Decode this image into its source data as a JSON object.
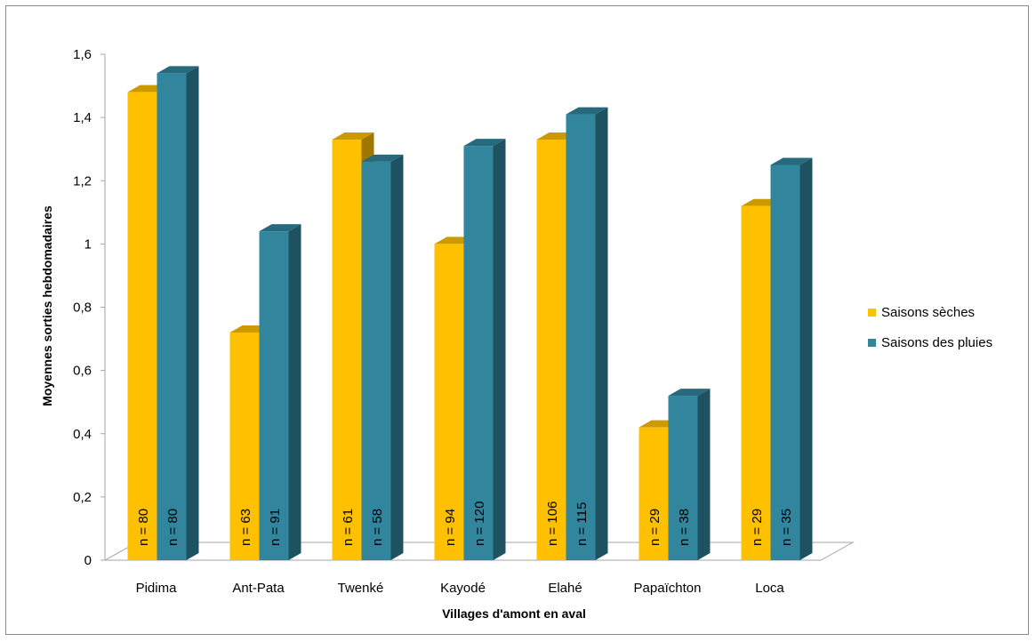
{
  "chart_data": {
    "type": "bar",
    "title": "",
    "xlabel": "Villages d'amont en aval",
    "ylabel": "Moyennes sorties hebdomadaires",
    "ylim": [
      0,
      1.6
    ],
    "yticks": [
      "0",
      "0,2",
      "0,4",
      "0,6",
      "0,8",
      "1",
      "1,2",
      "1,4",
      "1,6"
    ],
    "categories": [
      "Pidima",
      "Ant-Pata",
      "Twenké",
      "Kayodé",
      "Elahé",
      "Papaïchton",
      "Loca"
    ],
    "series": [
      {
        "name": "Saisons sèches",
        "color": "#FFC000",
        "values": [
          1.48,
          0.72,
          1.33,
          1.0,
          1.33,
          0.42,
          1.12
        ],
        "n_labels": [
          "n = 80",
          "n = 63",
          "n = 61",
          "n = 94",
          "n = 106",
          "n = 29",
          "n = 29"
        ]
      },
      {
        "name": "Saisons des pluies",
        "color": "#31859C",
        "values": [
          1.54,
          1.04,
          1.26,
          1.31,
          1.41,
          0.52,
          1.25
        ],
        "n_labels": [
          "n = 80",
          "n = 91",
          "n = 58",
          "n = 120",
          "n = 115",
          "n = 38",
          "n = 35"
        ]
      }
    ],
    "grid": false,
    "legend_position": "right"
  }
}
